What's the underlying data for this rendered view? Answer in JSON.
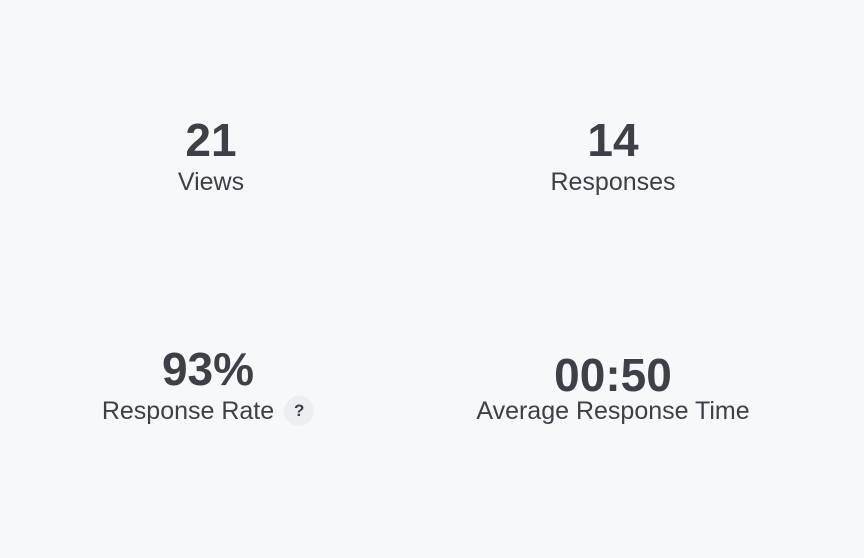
{
  "stats": [
    {
      "value": "21",
      "label": "Views"
    },
    {
      "value": "14",
      "label": "Responses"
    },
    {
      "value": "93%",
      "label": "Response Rate",
      "help_icon": "?"
    },
    {
      "value": "00:50",
      "label": "Average Response Time"
    }
  ]
}
